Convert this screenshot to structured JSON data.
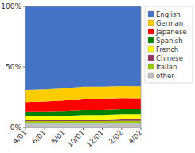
{
  "chart_data": {
    "type": "area",
    "stacked": true,
    "grid": false,
    "legend": "right",
    "categories": [
      "4/01",
      "6/01",
      "8/01",
      "10/01",
      "12/01",
      "2/02",
      "4/02"
    ],
    "series": [
      {
        "name": "other",
        "color": "#c0c0c0",
        "values": [
          0.04,
          0.04,
          0.04,
          0.04,
          0.04,
          0.04,
          0.04
        ]
      },
      {
        "name": "Italian",
        "color": "#99cc00",
        "values": [
          0.012,
          0.012,
          0.012,
          0.012,
          0.012,
          0.014,
          0.014
        ]
      },
      {
        "name": "Chinese",
        "color": "#993366",
        "values": [
          0.01,
          0.01,
          0.01,
          0.013,
          0.013,
          0.018,
          0.018
        ]
      },
      {
        "name": "French",
        "color": "#ffff00",
        "values": [
          0.03,
          0.03,
          0.033,
          0.038,
          0.038,
          0.038,
          0.038
        ]
      },
      {
        "name": "Spanish",
        "color": "#008000",
        "values": [
          0.042,
          0.042,
          0.042,
          0.042,
          0.042,
          0.042,
          0.042
        ]
      },
      {
        "name": "Japanese",
        "color": "#ff0000",
        "values": [
          0.075,
          0.08,
          0.085,
          0.092,
          0.092,
          0.09,
          0.088
        ]
      },
      {
        "name": "German",
        "color": "#ffcc00",
        "values": [
          0.1,
          0.1,
          0.1,
          0.1,
          0.1,
          0.1,
          0.1
        ]
      },
      {
        "name": "English",
        "color": "#4472c4",
        "values": [
          0.691,
          0.686,
          0.678,
          0.663,
          0.663,
          0.658,
          0.66
        ]
      }
    ],
    "ylim": [
      0,
      1.0
    ],
    "yticks": [
      {
        "value": 0.0,
        "label": "0%"
      },
      {
        "value": 0.5,
        "label": "50%"
      },
      {
        "value": 1.0,
        "label": "100%"
      }
    ]
  }
}
